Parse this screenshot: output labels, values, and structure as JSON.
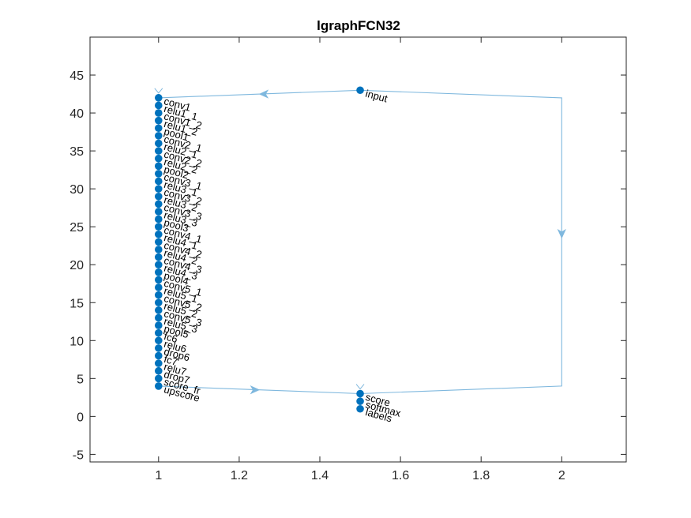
{
  "title": "lgraphFCN32",
  "axes": {
    "xlim": [
      0.83,
      2.16
    ],
    "ylim": [
      -6,
      50
    ],
    "xticks": [
      1,
      1.2,
      1.4,
      1.6,
      1.8,
      2
    ],
    "xtick_labels": [
      "1",
      "1.2",
      "1.4",
      "1.6",
      "1.8",
      "2"
    ],
    "yticks": [
      -5,
      0,
      5,
      10,
      15,
      20,
      25,
      30,
      35,
      40,
      45
    ],
    "ytick_labels": [
      "-5",
      "0",
      "5",
      "10",
      "15",
      "20",
      "25",
      "30",
      "35",
      "40",
      "45"
    ],
    "box": true,
    "grid": false
  },
  "colors": {
    "node": "#0072BD",
    "edge": "#7FB8DE",
    "axis": "#262626"
  },
  "nodes": [
    {
      "label": "input",
      "x": 1.5,
      "y": 43
    },
    {
      "label": "conv1",
      "x": 1,
      "y": 42
    },
    {
      "label": "relu1_1",
      "x": 1,
      "y": 41
    },
    {
      "label": "conv1_2",
      "x": 1,
      "y": 40
    },
    {
      "label": "relu1_2",
      "x": 1,
      "y": 39
    },
    {
      "label": "pool1",
      "x": 1,
      "y": 38
    },
    {
      "label": "conv2_1",
      "x": 1,
      "y": 37
    },
    {
      "label": "relu2_1",
      "x": 1,
      "y": 36
    },
    {
      "label": "conv2_2",
      "x": 1,
      "y": 35
    },
    {
      "label": "relu2_2",
      "x": 1,
      "y": 34
    },
    {
      "label": "pool2",
      "x": 1,
      "y": 33
    },
    {
      "label": "conv3_1",
      "x": 1,
      "y": 32
    },
    {
      "label": "relu3_1",
      "x": 1,
      "y": 31
    },
    {
      "label": "conv3_2",
      "x": 1,
      "y": 30
    },
    {
      "label": "relu3_2",
      "x": 1,
      "y": 29
    },
    {
      "label": "conv3_3",
      "x": 1,
      "y": 28
    },
    {
      "label": "relu3_3",
      "x": 1,
      "y": 27
    },
    {
      "label": "pool3",
      "x": 1,
      "y": 26
    },
    {
      "label": "conv4_1",
      "x": 1,
      "y": 25
    },
    {
      "label": "relu4_1",
      "x": 1,
      "y": 24
    },
    {
      "label": "conv4_2",
      "x": 1,
      "y": 23
    },
    {
      "label": "relu4_2",
      "x": 1,
      "y": 22
    },
    {
      "label": "conv4_3",
      "x": 1,
      "y": 21
    },
    {
      "label": "relu4_3",
      "x": 1,
      "y": 20
    },
    {
      "label": "pool4",
      "x": 1,
      "y": 19
    },
    {
      "label": "conv5_1",
      "x": 1,
      "y": 18
    },
    {
      "label": "relu5_1",
      "x": 1,
      "y": 17
    },
    {
      "label": "conv5_2",
      "x": 1,
      "y": 16
    },
    {
      "label": "relu5_2",
      "x": 1,
      "y": 15
    },
    {
      "label": "conv5_3",
      "x": 1,
      "y": 14
    },
    {
      "label": "relu5_3",
      "x": 1,
      "y": 13
    },
    {
      "label": "pool5",
      "x": 1,
      "y": 12
    },
    {
      "label": "fc6",
      "x": 1,
      "y": 11
    },
    {
      "label": "relu6",
      "x": 1,
      "y": 10
    },
    {
      "label": "drop6",
      "x": 1,
      "y": 9
    },
    {
      "label": "fc7",
      "x": 1,
      "y": 8
    },
    {
      "label": "relu7",
      "x": 1,
      "y": 7
    },
    {
      "label": "drop7",
      "x": 1,
      "y": 6
    },
    {
      "label": "score_fr",
      "x": 1,
      "y": 5
    },
    {
      "label": "upscore",
      "x": 1,
      "y": 4
    },
    {
      "label": "score",
      "x": 1.5,
      "y": 3
    },
    {
      "label": "softmax",
      "x": 1.5,
      "y": 2
    },
    {
      "label": "labels",
      "x": 1.5,
      "y": 1
    }
  ],
  "edges": [
    {
      "from": "input",
      "to": "conv1",
      "points": [
        [
          1.5,
          43
        ],
        [
          1,
          42
        ]
      ]
    },
    {
      "from": "input",
      "to": "score",
      "points": [
        [
          1.5,
          43
        ],
        [
          2,
          42
        ],
        [
          2,
          4
        ],
        [
          1.5,
          3
        ]
      ]
    },
    {
      "from": "upscore",
      "to": "score",
      "points": [
        [
          1,
          4
        ],
        [
          1.5,
          3
        ]
      ]
    }
  ],
  "arrowheads": [
    {
      "x": 1.25,
      "y": 42.5,
      "dir": "left"
    },
    {
      "x": 2,
      "y": 23.5,
      "dir": "down"
    },
    {
      "x": 1.25,
      "y": 3.5,
      "dir": "right"
    }
  ]
}
